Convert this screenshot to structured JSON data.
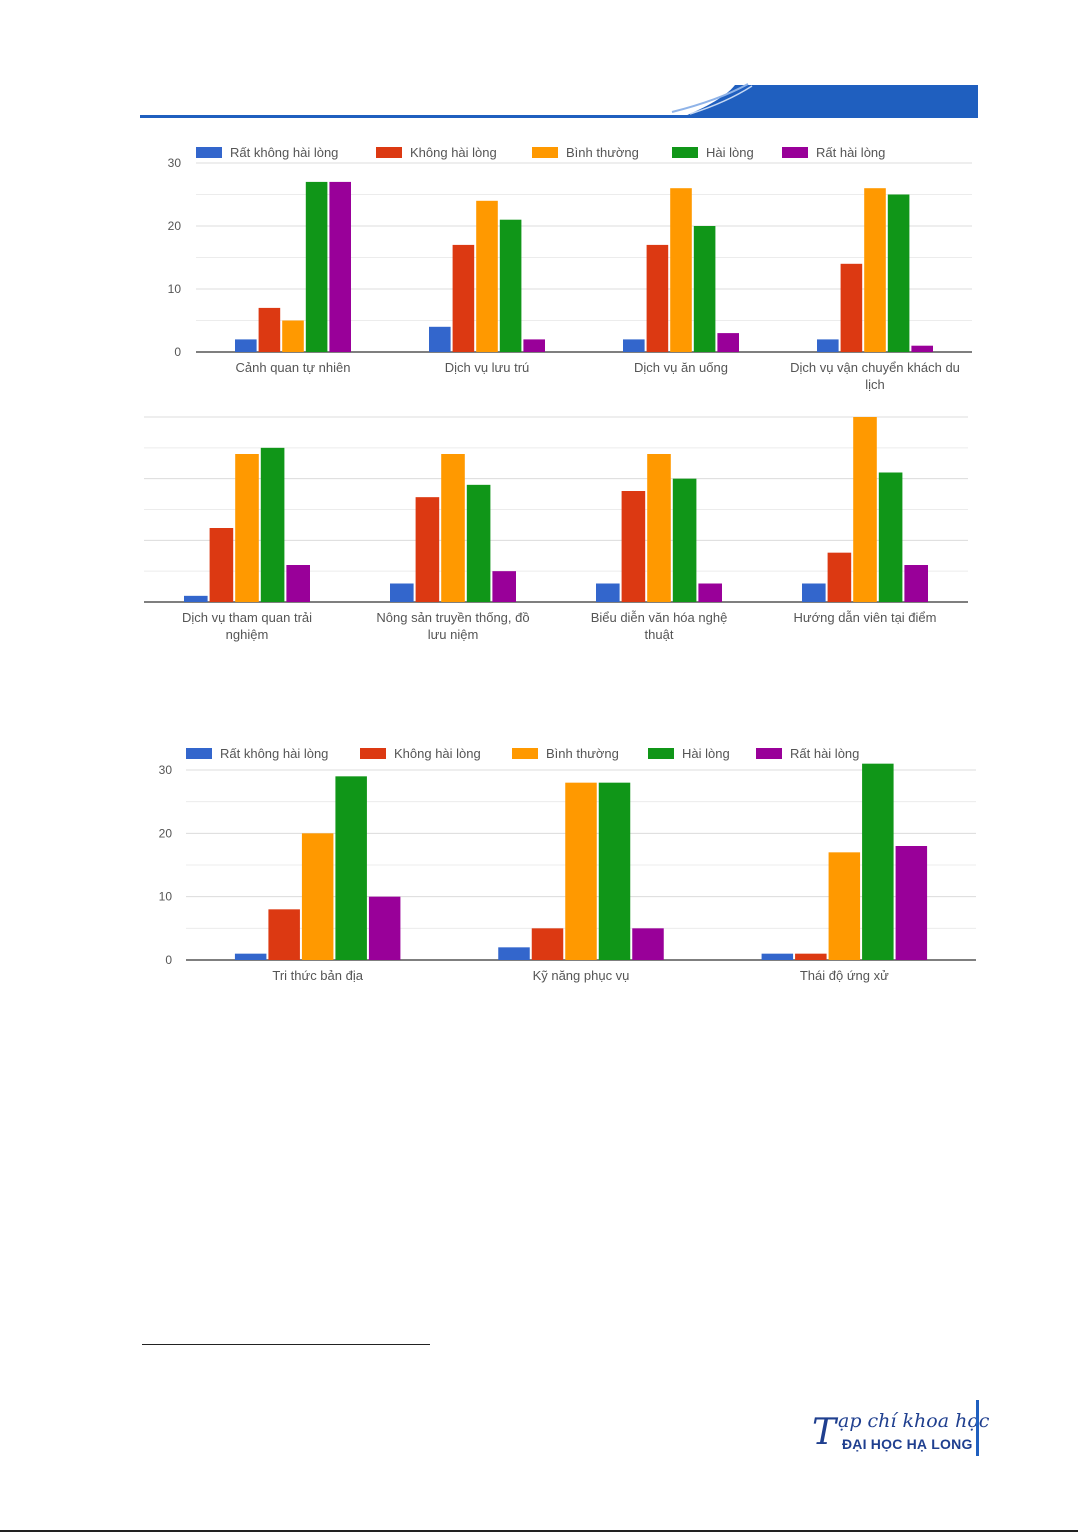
{
  "colors": {
    "header_blue": "#1f5fbf",
    "grid": "#e3e3e3",
    "axis": "#333333"
  },
  "legend": [
    {
      "label": "Rất không hài lòng",
      "color": "#3366cc"
    },
    {
      "label": "Không hài lòng",
      "color": "#dc3912"
    },
    {
      "label": "Bình thường",
      "color": "#ff9900"
    },
    {
      "label": "Hài lòng",
      "color": "#109618"
    },
    {
      "label": "Rất hài lòng",
      "color": "#990099"
    }
  ],
  "chart_data": [
    {
      "type": "bar",
      "categories": [
        "Cảnh quan tự nhiên",
        "Dịch vụ lưu trú",
        "Dịch vụ ăn uống",
        "Dịch vụ vận chuyển khách du lịch"
      ],
      "series": [
        {
          "name": "Rất không hài lòng",
          "values": [
            2,
            4,
            2,
            2
          ]
        },
        {
          "name": "Không hài lòng",
          "values": [
            7,
            17,
            17,
            14
          ]
        },
        {
          "name": "Bình thường",
          "values": [
            5,
            24,
            26,
            26
          ]
        },
        {
          "name": "Hài lòng",
          "values": [
            27,
            21,
            20,
            25
          ]
        },
        {
          "name": "Rất hài lòng",
          "values": [
            27,
            2,
            3,
            1
          ]
        }
      ],
      "yticks": [
        "0",
        "10",
        "20",
        "30"
      ],
      "ylim": [
        0,
        30
      ],
      "legend_position": "top",
      "grid": true
    },
    {
      "type": "bar",
      "categories": [
        "Dịch vụ tham quan trải nghiệm",
        "Nông sản truyền thống, đồ lưu niệm",
        "Biểu diễn văn hóa nghệ thuật",
        "Hướng dẫn viên tại điểm"
      ],
      "series": [
        {
          "name": "Rất không hài lòng",
          "values": [
            1,
            3,
            3,
            3
          ]
        },
        {
          "name": "Không hài lòng",
          "values": [
            12,
            17,
            18,
            8
          ]
        },
        {
          "name": "Bình thường",
          "values": [
            24,
            24,
            24,
            30
          ]
        },
        {
          "name": "Hài lòng",
          "values": [
            25,
            19,
            20,
            21
          ]
        },
        {
          "name": "Rất hài lòng",
          "values": [
            6,
            5,
            3,
            6
          ]
        }
      ],
      "ylim": [
        0,
        30
      ],
      "grid": true
    },
    {
      "type": "bar",
      "categories": [
        "Tri thức bản địa",
        "Kỹ năng phục vụ",
        "Thái độ ứng xử"
      ],
      "series": [
        {
          "name": "Rất không hài lòng",
          "values": [
            1,
            2,
            1
          ]
        },
        {
          "name": "Không hài lòng",
          "values": [
            8,
            5,
            1
          ]
        },
        {
          "name": "Bình thường",
          "values": [
            20,
            28,
            17
          ]
        },
        {
          "name": "Hài lòng",
          "values": [
            29,
            28,
            31
          ]
        },
        {
          "name": "Rất hài lòng",
          "values": [
            10,
            5,
            18
          ]
        }
      ],
      "yticks": [
        "0",
        "10",
        "20",
        "30"
      ],
      "ylim": [
        0,
        30
      ],
      "legend_position": "top",
      "grid": true
    }
  ],
  "journal": {
    "initial": "T",
    "script": "ạp chí khoa học",
    "name": "ĐẠI HỌC HẠ LONG"
  }
}
